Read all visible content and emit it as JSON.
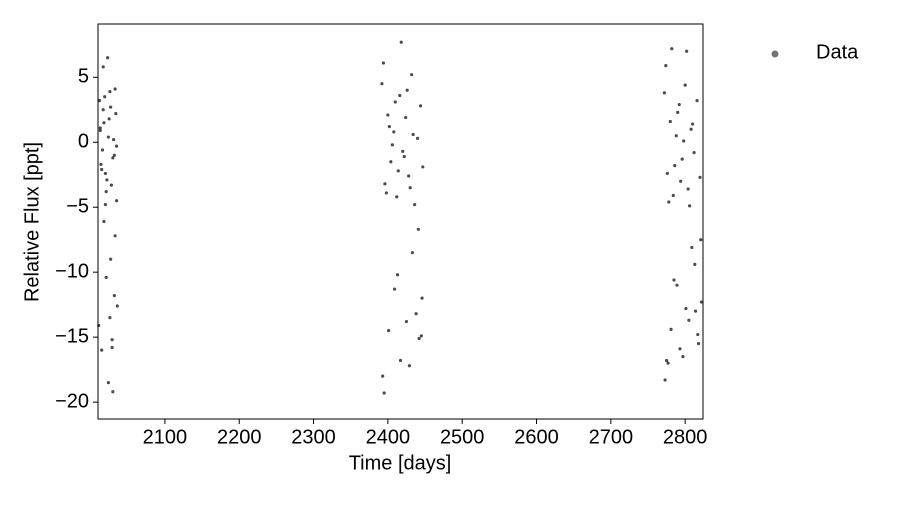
{
  "chart_data": {
    "type": "scatter",
    "xlabel": "Time [days]",
    "ylabel": "Relative Flux [ppt]",
    "xlim": [
      2010,
      2824
    ],
    "ylim": [
      -21.3,
      9.1
    ],
    "xticks": [
      2100,
      2200,
      2300,
      2400,
      2500,
      2600,
      2700,
      2800
    ],
    "yticks": [
      {
        "value": -20,
        "label": "−20"
      },
      {
        "value": -15,
        "label": "−15"
      },
      {
        "value": -10,
        "label": "−10"
      },
      {
        "value": -5,
        "label": "−5"
      },
      0,
      5
    ],
    "legend": "upper right",
    "series": [
      {
        "name": "Data",
        "color": "#000000",
        "x": [
          2012,
          2015,
          2018,
          2021,
          2024,
          2027,
          2030,
          2033,
          2035,
          2013,
          2016,
          2019,
          2022,
          2025,
          2028,
          2031,
          2034,
          2014,
          2017,
          2020,
          2023,
          2026,
          2029,
          2032,
          2011,
          2036,
          2015,
          2021,
          2027,
          2033,
          2018,
          2024,
          2030,
          2013,
          2035,
          2020,
          2026,
          2032,
          2017,
          2029,
          2392,
          2396,
          2400,
          2404,
          2408,
          2412,
          2416,
          2420,
          2424,
          2428,
          2432,
          2436,
          2440,
          2444,
          2447,
          2394,
          2398,
          2402,
          2406,
          2410,
          2414,
          2418,
          2422,
          2426,
          2430,
          2434,
          2438,
          2442,
          2446,
          2393,
          2401,
          2409,
          2417,
          2425,
          2433,
          2441,
          2395,
          2413,
          2429,
          2445,
          2772,
          2776,
          2780,
          2784,
          2788,
          2792,
          2796,
          2800,
          2804,
          2808,
          2812,
          2816,
          2820,
          2774,
          2778,
          2782,
          2786,
          2790,
          2794,
          2798,
          2802,
          2806,
          2810,
          2814,
          2818,
          2822,
          2773,
          2781,
          2789,
          2797,
          2805,
          2813,
          2821,
          2777,
          2785,
          2793,
          2801,
          2809,
          2817,
          2775
        ],
        "values": [
          3.2,
          -2.1,
          1.5,
          -3.8,
          0.4,
          2.7,
          -1.2,
          4.1,
          -4.5,
          0.9,
          -0.6,
          3.5,
          -2.9,
          1.8,
          -3.3,
          0.2,
          2.2,
          -1.7,
          5.8,
          -4.8,
          6.5,
          -13.5,
          -15.2,
          -11.8,
          -14.1,
          -12.6,
          -16.0,
          -10.4,
          -9.0,
          -7.2,
          -6.1,
          -18.5,
          -19.2,
          1.1,
          -0.3,
          -2.4,
          3.9,
          -1.0,
          2.5,
          -15.8,
          4.5,
          -3.2,
          2.1,
          -1.5,
          0.8,
          -4.2,
          3.6,
          -0.7,
          1.9,
          -2.6,
          5.2,
          -4.8,
          0.3,
          2.8,
          -1.9,
          6.1,
          -3.9,
          1.2,
          -0.2,
          3.1,
          -2.2,
          7.7,
          -1.1,
          4.0,
          -3.5,
          0.6,
          -13.2,
          -15.1,
          -12.0,
          -18.0,
          -14.5,
          -11.3,
          -16.8,
          -13.8,
          -8.5,
          -6.7,
          -19.3,
          -10.2,
          -17.2,
          -14.9,
          3.8,
          -2.4,
          1.6,
          -4.1,
          0.5,
          2.9,
          -1.3,
          4.4,
          -3.6,
          1.0,
          -0.8,
          3.2,
          -2.7,
          5.9,
          -4.6,
          7.2,
          -1.8,
          2.3,
          -3.0,
          0.1,
          7.0,
          -4.9,
          1.4,
          -13.0,
          -15.5,
          -12.3,
          -18.3,
          -14.4,
          -11.0,
          -16.5,
          -13.7,
          -9.4,
          -7.5,
          -17.0,
          -10.6,
          -15.9,
          -12.8,
          -8.1,
          -14.8,
          -16.8
        ]
      }
    ]
  }
}
